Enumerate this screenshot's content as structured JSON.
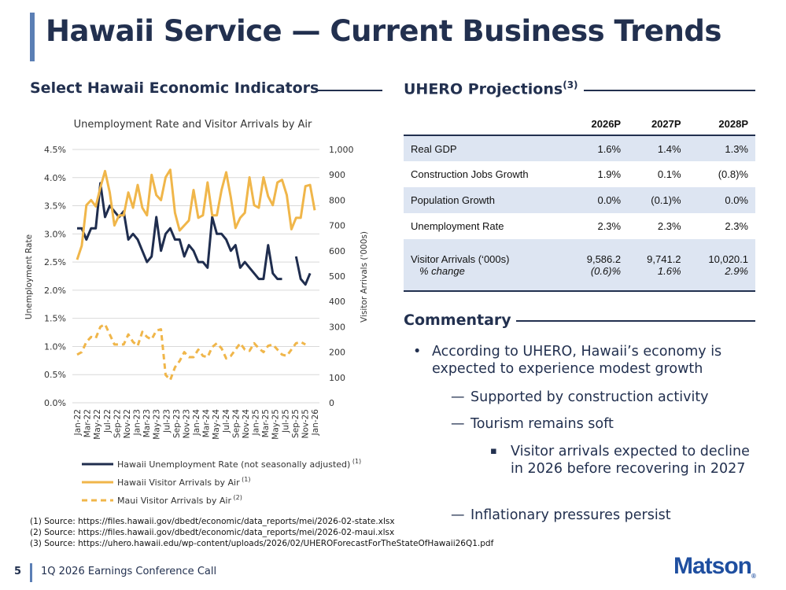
{
  "slide": {
    "title": "Hawaii Service — Current Business Trends",
    "left_heading": "Select Hawaii Economic Indicators",
    "right_heading": "UHERO Projections",
    "right_heading_sup": "(3)",
    "commentary_heading": "Commentary"
  },
  "chart_data": {
    "type": "line",
    "title": "Unemployment Rate and Visitor Arrivals by Air",
    "ylabel": "Unemployment Rate",
    "y2label": "Visitor Arrivals ('000s)",
    "ylim": [
      0,
      4.5
    ],
    "y2lim": [
      0,
      1000
    ],
    "y_ticks": [
      "0.0%",
      "0.5%",
      "1.0%",
      "1.5%",
      "2.0%",
      "2.5%",
      "3.0%",
      "3.5%",
      "4.0%",
      "4.5%"
    ],
    "y2_ticks": [
      "0",
      "100",
      "200",
      "300",
      "400",
      "500",
      "600",
      "700",
      "800",
      "900",
      "1,000"
    ],
    "x_tick_labels": [
      "Jan-22",
      "Mar-22",
      "May-22",
      "Jul-22",
      "Sep-22",
      "Nov-22",
      "Jan-23",
      "Mar-23",
      "May-23",
      "Jul-23",
      "Sep-23",
      "Nov-23",
      "Jan-24",
      "Mar-24",
      "May-24",
      "Jul-24",
      "Sep-24",
      "Nov-24",
      "Jan-25",
      "Mar-25",
      "May-25",
      "Jul-25",
      "Sep-25",
      "Nov-25",
      "Jan-26"
    ],
    "grid": true,
    "legend_position": "bottom",
    "series": [
      {
        "name": "Hawaii Unemployment Rate (not seasonally adjusted)",
        "name_sup": "(1)",
        "axis": "left",
        "color": "#1f2d4e",
        "dash": false,
        "values": [
          3.1,
          3.1,
          2.9,
          3.1,
          3.1,
          3.9,
          3.3,
          3.5,
          3.4,
          3.3,
          3.4,
          2.9,
          3.0,
          2.9,
          2.7,
          2.5,
          2.6,
          3.3,
          2.7,
          3.0,
          3.1,
          2.9,
          2.9,
          2.6,
          2.8,
          2.7,
          2.5,
          2.5,
          2.4,
          3.3,
          3.0,
          3.0,
          2.9,
          2.7,
          2.8,
          2.4,
          2.5,
          2.4,
          2.3,
          2.2,
          2.2,
          2.8,
          2.3,
          2.2,
          2.2,
          null,
          null,
          2.6,
          2.2,
          2.1,
          2.3
        ]
      },
      {
        "name": "Hawaii Visitor Arrivals by Air",
        "name_sup": "(1)",
        "axis": "right",
        "color": "#f0b64a",
        "dash": false,
        "values": [
          565,
          620,
          780,
          800,
          775,
          850,
          915,
          830,
          700,
          740,
          740,
          830,
          770,
          860,
          770,
          740,
          900,
          820,
          800,
          890,
          920,
          750,
          680,
          700,
          720,
          840,
          730,
          740,
          870,
          740,
          740,
          840,
          910,
          810,
          690,
          730,
          750,
          890,
          780,
          770,
          890,
          815,
          780,
          870,
          880,
          820,
          685,
          730,
          730,
          855,
          860,
          760
        ]
      },
      {
        "name": "Maui Visitor Arrivals by Air",
        "name_sup": "(2)",
        "axis": "right",
        "color": "#f0b64a",
        "dash": true,
        "values": [
          190,
          200,
          240,
          260,
          255,
          300,
          310,
          270,
          230,
          230,
          230,
          270,
          240,
          225,
          280,
          260,
          250,
          285,
          290,
          110,
          90,
          140,
          165,
          200,
          180,
          180,
          210,
          185,
          180,
          220,
          235,
          215,
          175,
          185,
          210,
          235,
          210,
          205,
          235,
          215,
          200,
          225,
          230,
          210,
          190,
          185,
          210,
          235,
          240,
          230
        ]
      }
    ]
  },
  "projections": {
    "headers": [
      "",
      "2026P",
      "2027P",
      "2028P"
    ],
    "rows": [
      {
        "label": "Real GDP",
        "values": [
          "1.6%",
          "1.4%",
          "1.3%"
        ]
      },
      {
        "label": "Construction Jobs Growth",
        "values": [
          "1.9%",
          "0.1%",
          "(0.8)%"
        ]
      },
      {
        "label": "Population Growth",
        "values": [
          "0.0%",
          "(0.1)%",
          "0.0%"
        ]
      },
      {
        "label": "Unemployment Rate",
        "values": [
          "2.3%",
          "2.3%",
          "2.3%"
        ]
      },
      {
        "label": "Visitor Arrivals  (‘000s)",
        "sub_label": "% change",
        "values": [
          "9,586.2",
          "9,741.2",
          "10,020.1"
        ],
        "sub_values": [
          "(0.6)%",
          "1.6%",
          "2.9%"
        ]
      }
    ]
  },
  "commentary": [
    {
      "level": 1,
      "marker": "•",
      "text": "According to UHERO, Hawaii’s economy is expected to experience modest growth"
    },
    {
      "level": 2,
      "marker": "—",
      "text": "Supported by construction activity"
    },
    {
      "level": 2,
      "marker": "—",
      "text": "Tourism remains soft"
    },
    {
      "level": 3,
      "marker": "▪",
      "text": "Visitor arrivals expected to decline in 2026 before recovering in 2027"
    },
    {
      "level": 2,
      "marker": "—",
      "text": "Inflationary pressures persist"
    }
  ],
  "footnotes": [
    "(1)  Source: https://files.hawaii.gov/dbedt/economic/data_reports/mei/2026-02-state.xlsx",
    "(2)  Source: https://files.hawaii.gov/dbedt/economic/data_reports/mei/2026-02-maui.xlsx",
    "(3)  Source: https://uhero.hawaii.edu/wp-content/uploads/2026/02/UHEROForecastForTheStateOfHawaii26Q1.pdf"
  ],
  "footer": {
    "page_number": "5",
    "text": "1Q 2026 Earnings Conference Call",
    "logo": "Matson",
    "logo_mark": "®"
  }
}
